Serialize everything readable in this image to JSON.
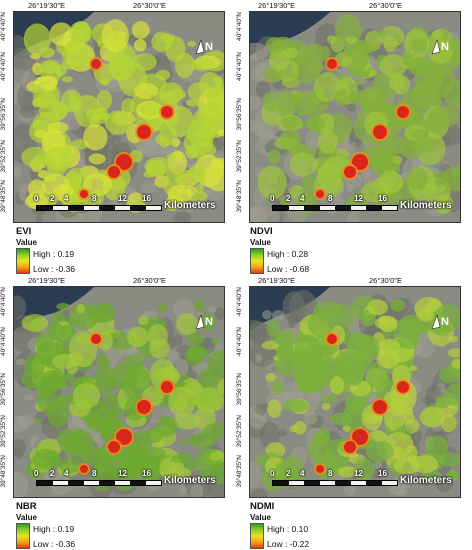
{
  "coordinates": {
    "top": [
      "26°19'30\"E",
      "26°30'0\"E"
    ],
    "left": [
      "40°4'40\"N",
      "40°4'40\"N",
      "39°56'35\"N",
      "39°52'35\"N",
      "39°48'35\"N"
    ]
  },
  "scale": {
    "ticks": [
      "0",
      "2",
      "4",
      "8",
      "12",
      "16"
    ],
    "unit": "Kilometers"
  },
  "north_label": "N",
  "legend_colors": [
    "#2e9c1f",
    "#8fd12a",
    "#e7e51e",
    "#f3a41a",
    "#e23a12"
  ],
  "panels": [
    {
      "index": "EVI",
      "legend_label": "Value",
      "high": "High : 0.19",
      "low": "Low : -0.36",
      "vegetation_color": "#b7d435",
      "accent_color": "#d9e23a"
    },
    {
      "index": "NDVI",
      "legend_label": "Value",
      "high": "High : 0.28",
      "low": "Low : -0.68",
      "vegetation_color": "#84b03a",
      "accent_color": "#9ec43c"
    },
    {
      "index": "NBR",
      "legend_label": "Value",
      "high": "High : 0.19",
      "low": "Low : -0.36",
      "vegetation_color": "#6ea92f",
      "accent_color": "#a3c83a"
    },
    {
      "index": "NDMI",
      "legend_label": "Value",
      "high": "High : 0.10",
      "low": "Low : -0.22",
      "vegetation_color": "#7ab03a",
      "accent_color": "#b3cf3c"
    }
  ]
}
